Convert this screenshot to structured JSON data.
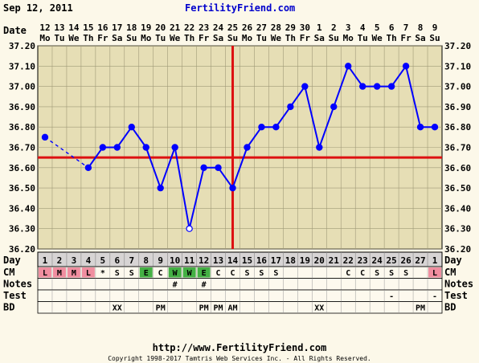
{
  "header": {
    "date": "Sep 12, 2011",
    "site": "FertilityFriend.com"
  },
  "footer": {
    "url": "http://www.FertilityFriend.com",
    "copyright": "Copyright 1998-2017 Tamtris Web Services Inc. - All Rights Reserved."
  },
  "labels": {
    "date": "Date",
    "day": "Day",
    "cm": "CM",
    "notes": "Notes",
    "test": "Test",
    "bd": "BD"
  },
  "colors": {
    "chart_bg": "#e6deb5",
    "line": "#0000ff",
    "coverline": "#dd1111",
    "ovulation_line": "#dd1111",
    "cm_l": "#f08ea0",
    "cm_e": "#44b044",
    "cm_w": "#44b044"
  },
  "chart_data": {
    "type": "line",
    "title": "",
    "xlabel": "Date",
    "ylabel": "",
    "ylim": [
      36.2,
      37.2
    ],
    "y_ticks": [
      "36.20",
      "36.30",
      "36.40",
      "36.50",
      "36.60",
      "36.70",
      "36.80",
      "36.90",
      "37.00",
      "37.10",
      "37.20"
    ],
    "dates": [
      "12",
      "13",
      "14",
      "15",
      "16",
      "17",
      "18",
      "19",
      "20",
      "21",
      "22",
      "23",
      "24",
      "25",
      "26",
      "27",
      "28",
      "29",
      "30",
      "1",
      "2",
      "3",
      "4",
      "5",
      "6",
      "7",
      "8",
      "9"
    ],
    "weekdays": [
      "Mo",
      "Tu",
      "We",
      "Th",
      "Fr",
      "Sa",
      "Su",
      "Mo",
      "Tu",
      "We",
      "Th",
      "Fr",
      "Sa",
      "Su",
      "Mo",
      "Tu",
      "We",
      "Th",
      "Fr",
      "Sa",
      "Su",
      "Mo",
      "Tu",
      "We",
      "Th",
      "Fr",
      "Sa",
      "Su"
    ],
    "cycle_days": [
      "1",
      "2",
      "3",
      "4",
      "5",
      "6",
      "7",
      "8",
      "9",
      "10",
      "11",
      "12",
      "13",
      "14",
      "15",
      "16",
      "17",
      "18",
      "19",
      "20",
      "21",
      "22",
      "23",
      "24",
      "25",
      "26",
      "27",
      "1"
    ],
    "series": [
      {
        "values": [
          36.75,
          null,
          null,
          36.6,
          36.7,
          36.7,
          36.8,
          36.7,
          36.5,
          36.7,
          36.3,
          36.6,
          36.6,
          36.5,
          36.7,
          36.8,
          36.8,
          36.9,
          37.0,
          36.7,
          36.9,
          37.1,
          37.0,
          37.0,
          37.0,
          37.1,
          36.8,
          36.8
        ],
        "open_points": [
          10
        ],
        "dashed_segment": [
          0,
          3
        ]
      }
    ],
    "coverline": 36.65,
    "ovulation_day_index": 13,
    "grid": true
  },
  "rows": {
    "cm": [
      "L",
      "M",
      "M",
      "L",
      "*",
      "S",
      "S",
      "E",
      "C",
      "W",
      "W",
      "E",
      "C",
      "C",
      "S",
      "S",
      "S",
      "",
      "",
      "",
      "",
      "C",
      "C",
      "S",
      "S",
      "S",
      "",
      "L"
    ],
    "notes": [
      "",
      "",
      "",
      "",
      "",
      "",
      "",
      "",
      "",
      "#",
      "",
      "#",
      "",
      "",
      "",
      "",
      "",
      "",
      "",
      "",
      "",
      "",
      "",
      "",
      "",
      "",
      "",
      ""
    ],
    "test": [
      "",
      "",
      "",
      "",
      "",
      "",
      "",
      "",
      "",
      "",
      "",
      "",
      "",
      "",
      "",
      "",
      "",
      "",
      "",
      "",
      "",
      "",
      "",
      "",
      "-",
      "",
      "",
      "-"
    ],
    "bd": [
      "",
      "",
      "",
      "",
      "",
      "XX",
      "",
      "",
      "PM",
      "",
      "",
      "PM",
      "PM",
      "AM",
      "",
      "",
      "",
      "",
      "",
      "XX",
      "",
      "",
      "",
      "",
      "",
      "",
      "PM",
      ""
    ]
  }
}
